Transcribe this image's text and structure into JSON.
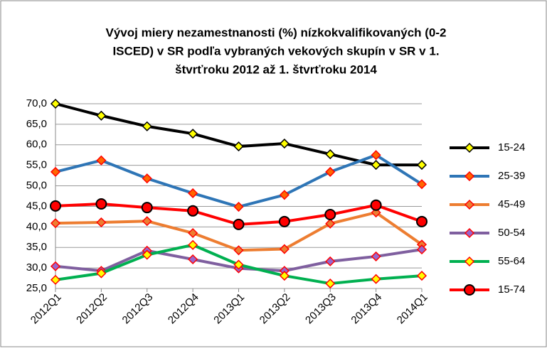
{
  "chart_data": {
    "type": "line",
    "title": [
      "Vývoj miery nezamestnanosti  (%) nízkokvalifikovaných (0-2",
      "ISCED) v SR podľa vybraných vekových skupín v SR v 1.",
      "štvrťroku 2012 až 1. štvrťroku 2014"
    ],
    "categories": [
      "2012Q1",
      "2012Q2",
      "2012Q3",
      "2012Q4",
      "2013Q1",
      "2013Q2",
      "2013Q3",
      "2013Q4",
      "2014Q1"
    ],
    "series": [
      {
        "name": "15-24",
        "color": "#000000",
        "marker": "diamond",
        "marker_fill": "#ffff00",
        "values": [
          70.0,
          67.1,
          64.5,
          62.7,
          59.6,
          60.3,
          57.7,
          55.1,
          55.1
        ]
      },
      {
        "name": "25-39",
        "color": "#2e75b6",
        "marker": "diamond",
        "marker_fill": "#ff6600",
        "marker_edge": "#ff0000",
        "values": [
          53.4,
          56.2,
          51.8,
          48.2,
          44.9,
          47.8,
          53.4,
          57.5,
          50.4
        ]
      },
      {
        "name": "45-49",
        "color": "#ed7d31",
        "marker": "diamond",
        "marker_fill": "#ed7d31",
        "marker_edge": "#ff0000",
        "values": [
          40.9,
          41.1,
          41.4,
          38.5,
          34.3,
          34.6,
          40.8,
          43.5,
          35.7
        ]
      },
      {
        "name": "50-54",
        "color": "#7f5f9f",
        "marker": "diamond",
        "marker_fill": "#9966cc",
        "marker_edge": "#ff0000",
        "values": [
          30.4,
          29.3,
          34.2,
          32.1,
          29.9,
          29.3,
          31.6,
          32.8,
          34.5
        ]
      },
      {
        "name": "55-64",
        "color": "#00b050",
        "marker": "diamond",
        "marker_fill": "#ffff00",
        "marker_edge": "#ff0000",
        "values": [
          27.1,
          28.7,
          33.2,
          35.6,
          30.8,
          28.1,
          26.2,
          27.3,
          28.1
        ]
      },
      {
        "name": "15-74",
        "color": "#ff0000",
        "marker": "circle",
        "marker_fill": "#ff0000",
        "marker_edge": "#000000",
        "values": [
          45.1,
          45.6,
          44.7,
          43.9,
          40.6,
          41.3,
          43.0,
          45.3,
          41.3
        ]
      }
    ],
    "ylim": [
      25,
      70
    ],
    "yticks": [
      {
        "value": 25,
        "label": "25,0"
      },
      {
        "value": 30,
        "label": "30,0"
      },
      {
        "value": 35,
        "label": "35,0"
      },
      {
        "value": 40,
        "label": "40,0"
      },
      {
        "value": 45,
        "label": "45,0"
      },
      {
        "value": 50,
        "label": "50,0"
      },
      {
        "value": 55,
        "label": "55,0"
      },
      {
        "value": 60,
        "label": "60,0"
      },
      {
        "value": 65,
        "label": "65,0"
      },
      {
        "value": 70,
        "label": "70,0"
      }
    ],
    "grid": true,
    "legend": "right"
  }
}
